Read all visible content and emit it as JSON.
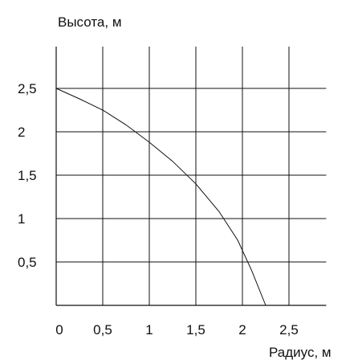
{
  "chart_data": {
    "type": "line",
    "title": "",
    "xlabel": "Радиус, м",
    "ylabel": "Высота, м",
    "xlim": [
      0,
      2.9
    ],
    "ylim": [
      0,
      2.9
    ],
    "grid": true,
    "x_ticks": [
      0,
      0.5,
      1,
      1.5,
      2,
      2.5
    ],
    "x_tick_labels": [
      "0",
      "0,5",
      "1",
      "1,5",
      "2",
      "2,5"
    ],
    "y_ticks": [
      0.5,
      1,
      1.5,
      2,
      2.5
    ],
    "y_tick_labels": [
      "0,5",
      "1",
      "1,5",
      "2",
      "2,5"
    ],
    "series": [
      {
        "color": "#111111",
        "x": [
          0,
          0.25,
          0.5,
          0.75,
          1.0,
          1.25,
          1.5,
          1.75,
          1.95,
          2.1,
          2.25
        ],
        "y": [
          2.5,
          2.38,
          2.25,
          2.08,
          1.88,
          1.66,
          1.4,
          1.08,
          0.75,
          0.4,
          0.0
        ]
      }
    ]
  }
}
